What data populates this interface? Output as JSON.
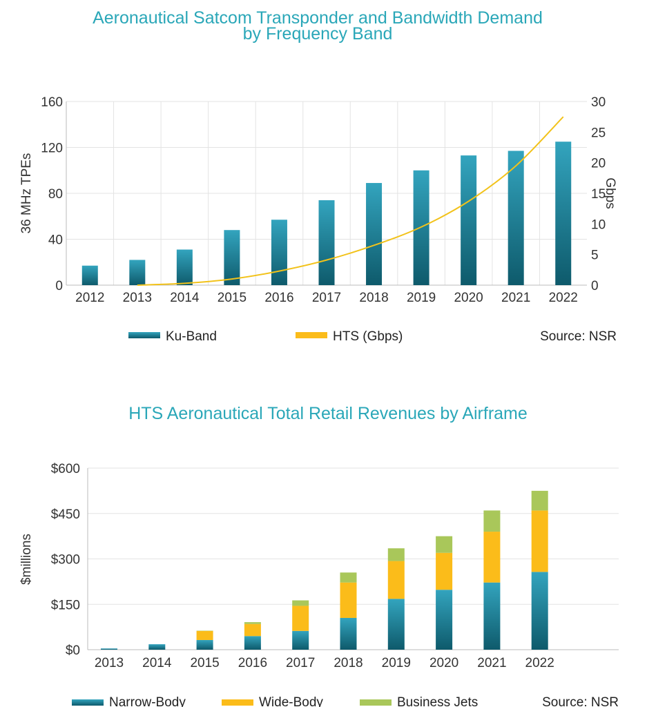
{
  "colors": {
    "title": "#2aa7b8",
    "ku_top": "#33a4be",
    "ku_bottom": "#0e5a6b",
    "hts_line": "#f2c21a",
    "narrow_top": "#33a4be",
    "narrow_bottom": "#0e5a6b",
    "wide": "#fbbc1a",
    "jets": "#a9c75a"
  },
  "chart_data": [
    {
      "type": "bar",
      "title": "Aeronautical Satcom Transponder and Bandwidth Demand\nby Frequency Band",
      "title_lines": [
        "Aeronautical Satcom Transponder and Bandwidth Demand",
        "by Frequency Band"
      ],
      "categories": [
        "2012",
        "2013",
        "2014",
        "2015",
        "2016",
        "2017",
        "2018",
        "2019",
        "2020",
        "2021",
        "2022"
      ],
      "series": [
        {
          "name": "Ku-Band",
          "type": "bar",
          "axis": "left",
          "values": [
            17,
            22,
            31,
            48,
            57,
            74,
            89,
            100,
            113,
            117,
            125
          ]
        },
        {
          "name": "HTS (Gbps)",
          "type": "line",
          "axis": "right",
          "values": [
            null,
            0,
            0.3,
            1.0,
            2.3,
            4.1,
            6.5,
            9.5,
            13.7,
            19.5,
            27.5
          ]
        }
      ],
      "ylabel": "36 MHz TPEs",
      "y2label": "Gbps",
      "ylim": [
        0,
        160
      ],
      "yticks": [
        "0",
        "40",
        "80",
        "120",
        "160"
      ],
      "y2lim": [
        0,
        30
      ],
      "y2ticks": [
        "0",
        "5",
        "10",
        "15",
        "20",
        "25",
        "30"
      ],
      "legend": [
        "Ku-Band",
        "HTS (Gbps)"
      ],
      "source": "Source: NSR"
    },
    {
      "type": "bar",
      "stacked": true,
      "title": "HTS Aeronautical Total Retail Revenues by Airframe",
      "categories": [
        "2013",
        "2014",
        "2015",
        "2016",
        "2017",
        "2018",
        "2019",
        "2020",
        "2021",
        "2022"
      ],
      "series": [
        {
          "name": "Narrow-Body",
          "values": [
            4,
            18,
            32,
            45,
            62,
            105,
            168,
            198,
            222,
            257
          ]
        },
        {
          "name": "Wide-Body",
          "values": [
            0,
            0,
            30,
            40,
            83,
            117,
            125,
            122,
            168,
            203
          ]
        },
        {
          "name": "Business Jets",
          "values": [
            0,
            0,
            1,
            6,
            18,
            33,
            42,
            55,
            70,
            65
          ]
        }
      ],
      "ylabel": "$millions",
      "ylim": [
        0,
        600
      ],
      "yticks": [
        "$0",
        "$150",
        "$300",
        "$450",
        "$600"
      ],
      "legend": [
        "Narrow-Body",
        "Wide-Body",
        "Business Jets"
      ],
      "source": "Source: NSR"
    }
  ]
}
